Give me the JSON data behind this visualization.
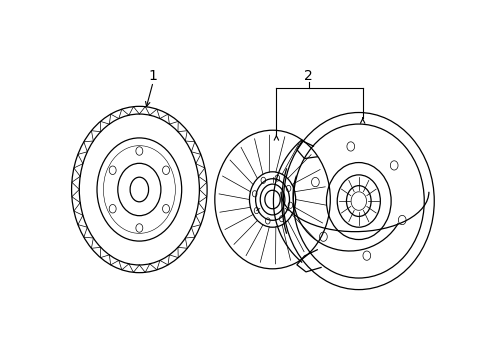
{
  "background_color": "#ffffff",
  "line_color": "#000000",
  "line_width": 0.9,
  "thin_lw": 0.5,
  "fig_width": 4.89,
  "fig_height": 3.6,
  "dpi": 100,
  "label1": "1",
  "label2": "2"
}
